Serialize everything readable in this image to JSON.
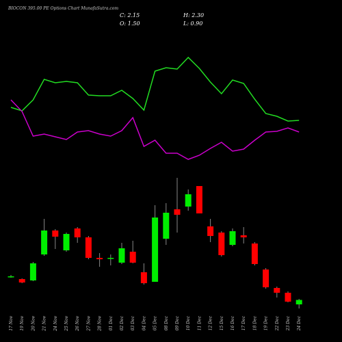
{
  "chart_data": [
    {
      "type": "line",
      "ylim": [
        0,
        100
      ],
      "series": [
        {
          "color": "#22dd22",
          "values": [
            46.5,
            44,
            52,
            67,
            64.5,
            65.5,
            64.5,
            55.5,
            55,
            55,
            59,
            53,
            44.5,
            73,
            75.5,
            74.5,
            83,
            75,
            65,
            56.5,
            66.5,
            64,
            52.5,
            42,
            40,
            36.5,
            37
          ]
        },
        {
          "color": "#cc00cc",
          "values": [
            52,
            43.5,
            25.5,
            27,
            25,
            23,
            28.5,
            29.5,
            27,
            25.5,
            29.5,
            39,
            18,
            22.5,
            13,
            13,
            8.5,
            11.5,
            16.5,
            21,
            14.5,
            16,
            22.5,
            28.5,
            29,
            31.5,
            28.5
          ]
        }
      ]
    },
    {
      "type": "candlestick",
      "title": "BIOCON 395.00 PE Options Chart MunafaSutra.com",
      "info": [
        "C: 2.15",
        "H: 2.30",
        "O: 1.50",
        "L: 0.90"
      ],
      "up_color": "#00ee00",
      "down_color": "#ff0000",
      "ylim": [
        0,
        20.5
      ],
      "categories": [
        "17 Nov",
        "19 Nov",
        "20 Nov",
        "21 Nov",
        "24 Nov",
        "25 Nov",
        "26 Nov",
        "27 Nov",
        "28 Nov",
        "01 Dec",
        "02 Dec",
        "03 Dec",
        "04 Dec",
        "05 Dec",
        "08 Dec",
        "09 Dec",
        "10 Dec",
        "11 Dec",
        "12 Dec",
        "15 Dec",
        "16 Dec",
        "17 Dec",
        "18 Dec",
        "19 Dec",
        "22 Dec",
        "23 Dec",
        "24 Dec"
      ],
      "open": [
        5.5,
        5.2,
        5.0,
        8.8,
        12.3,
        9.4,
        12.6,
        11.3,
        8.3,
        8.2,
        7.6,
        9.2,
        6.2,
        4.8,
        11.1,
        15.4,
        15.8,
        18.8,
        12.9,
        12.0,
        10.2,
        11.6,
        10.4,
        6.6,
        3.9,
        3.2,
        1.5
      ],
      "high": [
        5.8,
        5.3,
        7.7,
        14.0,
        12.5,
        12.0,
        12.8,
        11.5,
        9.0,
        8.8,
        10.5,
        10.8,
        7.5,
        16.0,
        16.3,
        20.0,
        18.3,
        18.8,
        14.0,
        12.2,
        12.6,
        12.8,
        10.6,
        6.8,
        4.1,
        3.4,
        2.3
      ],
      "low": [
        5.4,
        4.6,
        4.9,
        8.6,
        9.6,
        9.2,
        10.5,
        8.1,
        7.0,
        7.2,
        7.4,
        7.5,
        4.4,
        4.8,
        10.2,
        12.0,
        15.2,
        14.8,
        10.6,
        8.5,
        10.0,
        10.4,
        7.2,
        3.8,
        2.5,
        1.8,
        0.9
      ],
      "close": [
        5.6,
        4.7,
        7.5,
        12.3,
        11.4,
        11.8,
        11.3,
        8.3,
        8.1,
        8.3,
        9.7,
        7.6,
        4.6,
        14.2,
        14.9,
        14.6,
        17.6,
        14.8,
        11.5,
        8.7,
        12.2,
        11.3,
        7.4,
        4.0,
        3.2,
        1.9,
        2.15
      ]
    }
  ]
}
